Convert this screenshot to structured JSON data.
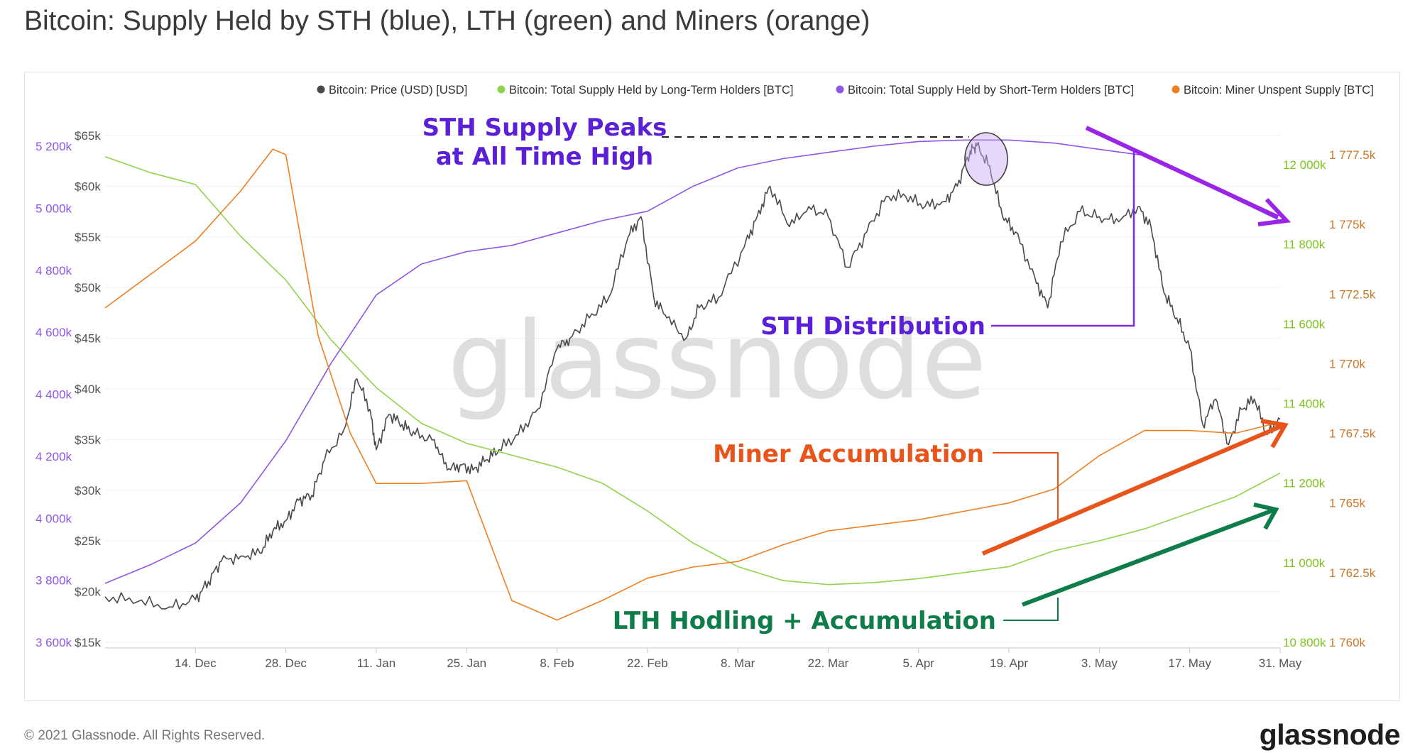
{
  "title": "Bitcoin: Supply Held by STH (blue), LTH (green) and Miners (orange)",
  "footer": {
    "copyright": "© 2021 Glassnode. All Rights Reserved.",
    "brand": "glassnode"
  },
  "watermark": "glassnode",
  "colors": {
    "price": "#4a4a4a",
    "lth": "#8fd44a",
    "sth": "#8e56e6",
    "miner": "#f07f22",
    "sth_annotation": "#5a1fd6",
    "miner_annotation": "#e8541a",
    "lth_annotation": "#0e7d4a"
  },
  "chart_data": {
    "type": "line",
    "x_axis": {
      "ticks": [
        "14. Dec",
        "28. Dec",
        "11. Jan",
        "25. Jan",
        "8. Feb",
        "22. Feb",
        "8. Mar",
        "22. Mar",
        "5. Apr",
        "19. Apr",
        "3. May",
        "17. May",
        "31. May"
      ],
      "start": "2020-11-30",
      "end": "2021-05-31"
    },
    "axes": {
      "sth": {
        "ticks": [
          "3 600k",
          "3 800k",
          "4 000k",
          "4 200k",
          "4 400k",
          "4 600k",
          "4 800k",
          "5 000k",
          "5 200k"
        ],
        "min": 3600000,
        "max": 5200000,
        "color": "#8e56e6"
      },
      "price": {
        "ticks": [
          "$15k",
          "$20k",
          "$25k",
          "$30k",
          "$35k",
          "$40k",
          "$45k",
          "$50k",
          "$55k",
          "$60k",
          "$65k"
        ],
        "min": 15000,
        "max": 65000,
        "color": "#555555"
      },
      "lth": {
        "ticks": [
          "10 800k",
          "11 000k",
          "11 200k",
          "11 400k",
          "11 600k",
          "11 800k",
          "12 000k"
        ],
        "min": 10800000,
        "max": 12000000,
        "color": "#7cc41c"
      },
      "miner": {
        "ticks": [
          "1 760k",
          "1 762.5k",
          "1 765k",
          "1 767.5k",
          "1 770k",
          "1 772.5k",
          "1 775k",
          "1 777.5k"
        ],
        "min": 1760000,
        "max": 1777500,
        "color": "#c9782a"
      }
    },
    "legend_position": "top-right",
    "series": [
      {
        "name": "Bitcoin: Price (USD) [USD]",
        "axis": "price",
        "color": "#4a4a4a",
        "points": [
          [
            "2020-11-30",
            19500
          ],
          [
            "2020-12-05",
            19000
          ],
          [
            "2020-12-10",
            18500
          ],
          [
            "2020-12-14",
            19200
          ],
          [
            "2020-12-16",
            21000
          ],
          [
            "2020-12-18",
            23000
          ],
          [
            "2020-12-21",
            23500
          ],
          [
            "2020-12-24",
            23800
          ],
          [
            "2020-12-26",
            26000
          ],
          [
            "2020-12-28",
            27000
          ],
          [
            "2020-12-30",
            29000
          ],
          [
            "2021-01-01",
            29500
          ],
          [
            "2021-01-03",
            33000
          ],
          [
            "2021-01-06",
            36000
          ],
          [
            "2021-01-08",
            41000
          ],
          [
            "2021-01-10",
            38000
          ],
          [
            "2021-01-11",
            34000
          ],
          [
            "2021-01-13",
            37500
          ],
          [
            "2021-01-15",
            36500
          ],
          [
            "2021-01-17",
            35500
          ],
          [
            "2021-01-20",
            35000
          ],
          [
            "2021-01-22",
            32000
          ],
          [
            "2021-01-24",
            32500
          ],
          [
            "2021-01-26",
            32000
          ],
          [
            "2021-01-28",
            33000
          ],
          [
            "2021-01-30",
            34000
          ],
          [
            "2021-02-02",
            35500
          ],
          [
            "2021-02-05",
            38000
          ],
          [
            "2021-02-08",
            44000
          ],
          [
            "2021-02-10",
            45000
          ],
          [
            "2021-02-13",
            47000
          ],
          [
            "2021-02-16",
            49000
          ],
          [
            "2021-02-19",
            55000
          ],
          [
            "2021-02-21",
            57000
          ],
          [
            "2021-02-23",
            49000
          ],
          [
            "2021-02-25",
            47000
          ],
          [
            "2021-02-28",
            45000
          ],
          [
            "2021-03-02",
            48000
          ],
          [
            "2021-03-05",
            49000
          ],
          [
            "2021-03-09",
            54000
          ],
          [
            "2021-03-11",
            57000
          ],
          [
            "2021-03-13",
            60000
          ],
          [
            "2021-03-16",
            56000
          ],
          [
            "2021-03-19",
            58000
          ],
          [
            "2021-03-22",
            57000
          ],
          [
            "2021-03-25",
            52000
          ],
          [
            "2021-03-28",
            55500
          ],
          [
            "2021-03-31",
            59000
          ],
          [
            "2021-04-03",
            59000
          ],
          [
            "2021-04-06",
            58000
          ],
          [
            "2021-04-09",
            58500
          ],
          [
            "2021-04-11",
            60000
          ],
          [
            "2021-04-13",
            63500
          ],
          [
            "2021-04-14",
            64000
          ],
          [
            "2021-04-16",
            62000
          ],
          [
            "2021-04-18",
            57000
          ],
          [
            "2021-04-20",
            55500
          ],
          [
            "2021-04-23",
            51000
          ],
          [
            "2021-04-25",
            48000
          ],
          [
            "2021-04-27",
            54500
          ],
          [
            "2021-04-30",
            57500
          ],
          [
            "2021-05-03",
            57000
          ],
          [
            "2021-05-06",
            56500
          ],
          [
            "2021-05-09",
            58000
          ],
          [
            "2021-05-11",
            56000
          ],
          [
            "2021-05-13",
            49500
          ],
          [
            "2021-05-15",
            47000
          ],
          [
            "2021-05-17",
            44000
          ],
          [
            "2021-05-19",
            36500
          ],
          [
            "2021-05-21",
            39000
          ],
          [
            "2021-05-23",
            34500
          ],
          [
            "2021-05-25",
            38000
          ],
          [
            "2021-05-27",
            39000
          ],
          [
            "2021-05-29",
            35500
          ],
          [
            "2021-05-31",
            37000
          ]
        ]
      },
      {
        "name": "Bitcoin: Total Supply Held by Long-Term Holders [BTC]",
        "axis": "lth",
        "color": "#8fd44a",
        "points": [
          [
            "2020-11-30",
            12020000
          ],
          [
            "2020-12-07",
            11980000
          ],
          [
            "2020-12-14",
            11950000
          ],
          [
            "2020-12-21",
            11820000
          ],
          [
            "2020-12-28",
            11710000
          ],
          [
            "2021-01-04",
            11560000
          ],
          [
            "2021-01-11",
            11440000
          ],
          [
            "2021-01-18",
            11350000
          ],
          [
            "2021-01-25",
            11300000
          ],
          [
            "2021-02-01",
            11270000
          ],
          [
            "2021-02-08",
            11240000
          ],
          [
            "2021-02-15",
            11200000
          ],
          [
            "2021-02-22",
            11130000
          ],
          [
            "2021-03-01",
            11050000
          ],
          [
            "2021-03-08",
            10990000
          ],
          [
            "2021-03-15",
            10955000
          ],
          [
            "2021-03-22",
            10945000
          ],
          [
            "2021-03-29",
            10950000
          ],
          [
            "2021-04-05",
            10960000
          ],
          [
            "2021-04-12",
            10975000
          ],
          [
            "2021-04-19",
            10990000
          ],
          [
            "2021-04-26",
            11030000
          ],
          [
            "2021-05-03",
            11055000
          ],
          [
            "2021-05-10",
            11085000
          ],
          [
            "2021-05-17",
            11125000
          ],
          [
            "2021-05-24",
            11165000
          ],
          [
            "2021-05-31",
            11225000
          ]
        ]
      },
      {
        "name": "Bitcoin: Total Supply Held by Short-Term Holders [BTC]",
        "axis": "sth",
        "color": "#8e56e6",
        "points": [
          [
            "2020-11-30",
            3790000
          ],
          [
            "2020-12-07",
            3850000
          ],
          [
            "2020-12-14",
            3920000
          ],
          [
            "2020-12-21",
            4050000
          ],
          [
            "2020-12-28",
            4250000
          ],
          [
            "2021-01-04",
            4500000
          ],
          [
            "2021-01-11",
            4720000
          ],
          [
            "2021-01-18",
            4820000
          ],
          [
            "2021-01-25",
            4860000
          ],
          [
            "2021-02-01",
            4880000
          ],
          [
            "2021-02-08",
            4920000
          ],
          [
            "2021-02-15",
            4960000
          ],
          [
            "2021-02-22",
            4990000
          ],
          [
            "2021-03-01",
            5070000
          ],
          [
            "2021-03-08",
            5130000
          ],
          [
            "2021-03-15",
            5160000
          ],
          [
            "2021-03-22",
            5180000
          ],
          [
            "2021-03-29",
            5200000
          ],
          [
            "2021-04-05",
            5215000
          ],
          [
            "2021-04-12",
            5220000
          ],
          [
            "2021-04-19",
            5220000
          ],
          [
            "2021-04-26",
            5210000
          ],
          [
            "2021-05-03",
            5190000
          ],
          [
            "2021-05-10",
            5170000
          ],
          [
            "2021-05-17",
            5110000
          ],
          [
            "2021-05-24",
            5030000
          ],
          [
            "2021-05-31",
            4960000
          ]
        ]
      },
      {
        "name": "Bitcoin: Miner Unspent Supply [BTC]",
        "axis": "miner",
        "color": "#f07f22",
        "points": [
          [
            "2020-11-30",
            1772000
          ],
          [
            "2020-12-07",
            1773200
          ],
          [
            "2020-12-14",
            1774400
          ],
          [
            "2020-12-21",
            1776200
          ],
          [
            "2020-12-26",
            1777700
          ],
          [
            "2020-12-28",
            1777500
          ],
          [
            "2021-01-02",
            1771000
          ],
          [
            "2021-01-07",
            1767500
          ],
          [
            "2021-01-11",
            1765700
          ],
          [
            "2021-01-18",
            1765700
          ],
          [
            "2021-01-25",
            1765800
          ],
          [
            "2021-02-01",
            1761500
          ],
          [
            "2021-02-08",
            1760800
          ],
          [
            "2021-02-15",
            1761500
          ],
          [
            "2021-02-22",
            1762300
          ],
          [
            "2021-03-01",
            1762700
          ],
          [
            "2021-03-08",
            1762900
          ],
          [
            "2021-03-15",
            1763500
          ],
          [
            "2021-03-22",
            1764000
          ],
          [
            "2021-03-29",
            1764200
          ],
          [
            "2021-04-05",
            1764400
          ],
          [
            "2021-04-12",
            1764700
          ],
          [
            "2021-04-19",
            1765000
          ],
          [
            "2021-04-26",
            1765500
          ],
          [
            "2021-05-03",
            1766700
          ],
          [
            "2021-05-10",
            1767600
          ],
          [
            "2021-05-17",
            1767600
          ],
          [
            "2021-05-24",
            1767500
          ],
          [
            "2021-05-31",
            1767900
          ]
        ]
      }
    ],
    "annotations": [
      {
        "text_lines": [
          "STH Supply Peaks",
          "at All Time High"
        ],
        "color": "#5a1fd6"
      },
      {
        "text": "STH Distribution",
        "color": "#5a1fd6"
      },
      {
        "text": "Miner Accumulation",
        "color": "#e8541a"
      },
      {
        "text": "LTH Hodling + Accumulation",
        "color": "#0e7d4a"
      }
    ]
  }
}
